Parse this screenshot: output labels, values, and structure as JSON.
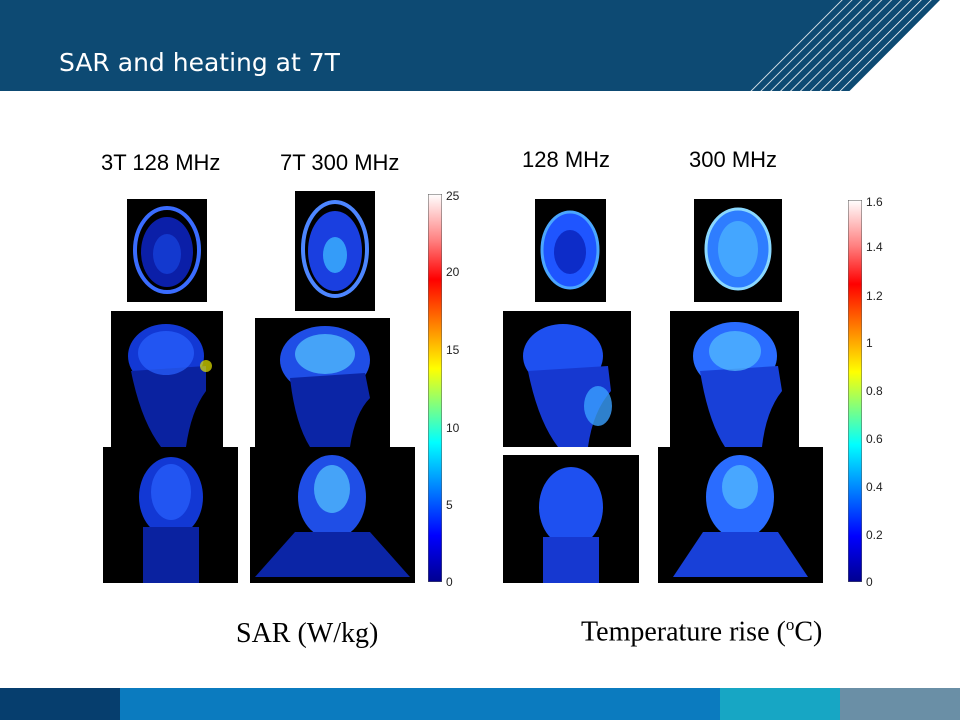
{
  "slide": {
    "title": "SAR and heating at 7T"
  },
  "sar_panel": {
    "col_labels": [
      "3T 128 MHz",
      "7T 300 MHz"
    ],
    "colorbar_ticks": [
      "25",
      "20",
      "15",
      "10",
      "5",
      "0"
    ],
    "caption": "SAR  (W/kg)"
  },
  "temp_panel": {
    "col_labels": [
      "128 MHz",
      "300 MHz"
    ],
    "colorbar_ticks": [
      "1.6",
      "1.4",
      "1.2",
      "1",
      "0.8",
      "0.6",
      "0.4",
      "0.2",
      "0"
    ],
    "caption_main": "Temperature rise (",
    "caption_sup": "o",
    "caption_end": "C)"
  },
  "colors": {
    "header": "#0d4a73",
    "footer": [
      "#063e6e",
      "#0b7bbf",
      "#17a6c4",
      "#6a8fa6"
    ]
  }
}
